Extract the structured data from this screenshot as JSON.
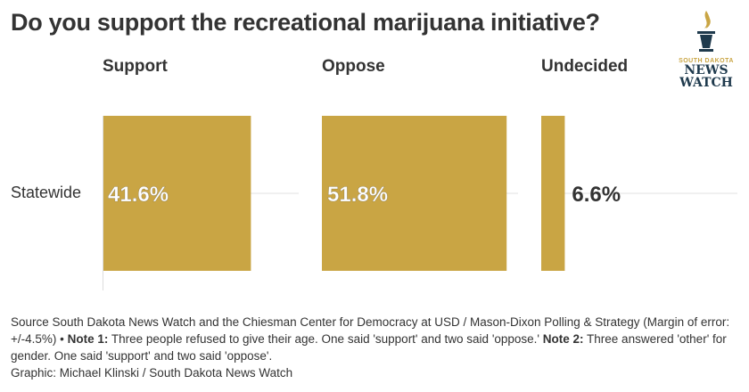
{
  "chart_data": {
    "type": "bar",
    "title": "Do you support the recreational marijuana initiative?",
    "categories": [
      "Statewide"
    ],
    "series": [
      {
        "name": "Support",
        "values": [
          41.6
        ],
        "label": "41.6%"
      },
      {
        "name": "Oppose",
        "values": [
          51.8
        ],
        "label": "51.8%"
      },
      {
        "name": "Undecided",
        "values": [
          6.6
        ],
        "label": "6.6%"
      }
    ],
    "xlim": [
      0,
      55
    ],
    "bar_color": "#c9a544",
    "grid": true
  },
  "notes": {
    "source": "Source South Dakota News Watch and the Chiesman Center for Democracy at USD / Mason-Dixon Polling & Strategy (Margin of error: +/-4.5%) • ",
    "note1_label": "Note 1:",
    "note1": " Three people refused to give their age. One said 'support' and two said 'oppose.' ",
    "note2_label": "Note 2:",
    "note2": " Three answered 'other' for gender. One said 'support' and two said 'oppose'.",
    "credit": "Graphic: Michael Klinski / South Dakota News Watch"
  },
  "logo": {
    "line1": "SOUTH DAKOTA",
    "line2": "NEWS",
    "line3": "WATCH"
  }
}
